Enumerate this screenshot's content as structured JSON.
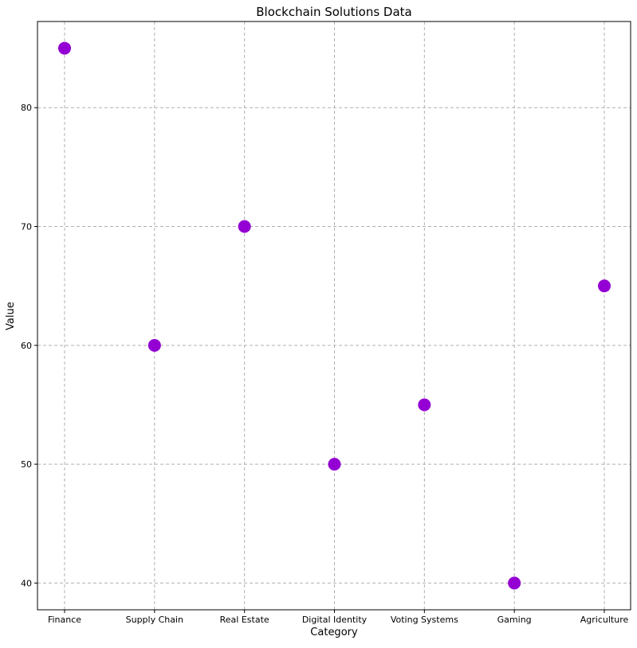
{
  "chart_data": {
    "type": "scatter",
    "title": "Blockchain Solutions Data",
    "xlabel": "Category",
    "ylabel": "Value",
    "categories": [
      "Finance",
      "Supply Chain",
      "Real Estate",
      "Digital Identity",
      "Voting Systems",
      "Gaming",
      "Agriculture"
    ],
    "values": [
      85,
      60,
      70,
      50,
      55,
      40,
      65
    ],
    "yticks": [
      40,
      50,
      60,
      70,
      80
    ],
    "ylim": [
      37.75,
      87.25
    ],
    "grid": true,
    "marker_color": "#9400d3"
  }
}
